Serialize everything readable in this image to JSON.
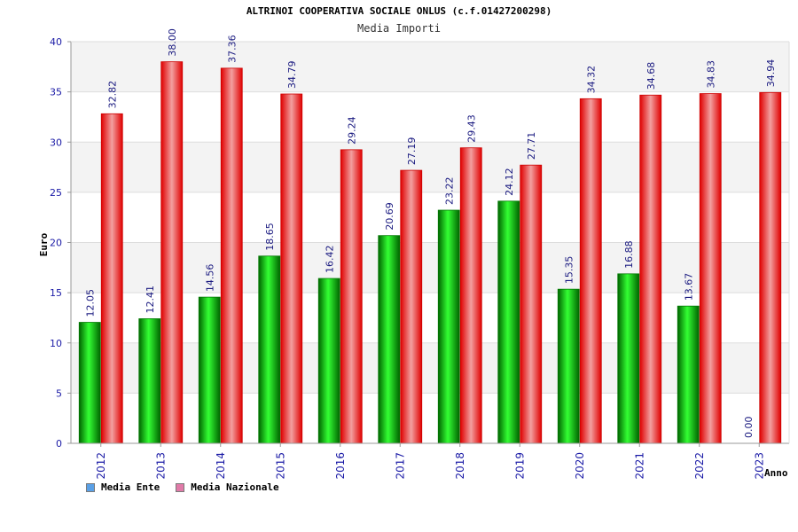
{
  "chart_data": {
    "type": "bar",
    "title": "ALTRINOI COOPERATIVA SOCIALE ONLUS (c.f.01427200298)",
    "subtitle": "Media Importi",
    "ylabel": "Euro",
    "xlabel": "Anno",
    "ylim": [
      0,
      40
    ],
    "yticks": [
      0,
      5,
      10,
      15,
      20,
      25,
      30,
      35,
      40
    ],
    "categories": [
      "2012",
      "2013",
      "2014",
      "2015",
      "2016",
      "2017",
      "2018",
      "2019",
      "2020",
      "2021",
      "2022",
      "2023"
    ],
    "series": [
      {
        "name": "Media Ente",
        "color": "#00aa00",
        "legend_color": "#5aa0e6",
        "values": [
          12.05,
          12.41,
          14.56,
          18.65,
          16.42,
          20.69,
          23.22,
          24.12,
          15.35,
          16.88,
          13.67,
          0.0
        ],
        "labels": [
          "12.05",
          "12.41",
          "14.56",
          "18.65",
          "16.42",
          "20.69",
          "23.22",
          "24.12",
          "15.35",
          "16.88",
          "13.67",
          "0.00"
        ]
      },
      {
        "name": "Media Nazionale",
        "color": "#ee0000",
        "legend_color": "#e07aa8",
        "values": [
          32.82,
          38.0,
          37.36,
          34.79,
          29.24,
          27.19,
          29.43,
          27.71,
          34.32,
          34.68,
          34.83,
          34.94
        ],
        "labels": [
          "32.82",
          "38.00",
          "37.36",
          "34.79",
          "29.24",
          "27.19",
          "29.43",
          "27.71",
          "34.32",
          "34.68",
          "34.83",
          "34.94"
        ]
      }
    ],
    "grid": true,
    "legend_position": "bottom-left"
  }
}
